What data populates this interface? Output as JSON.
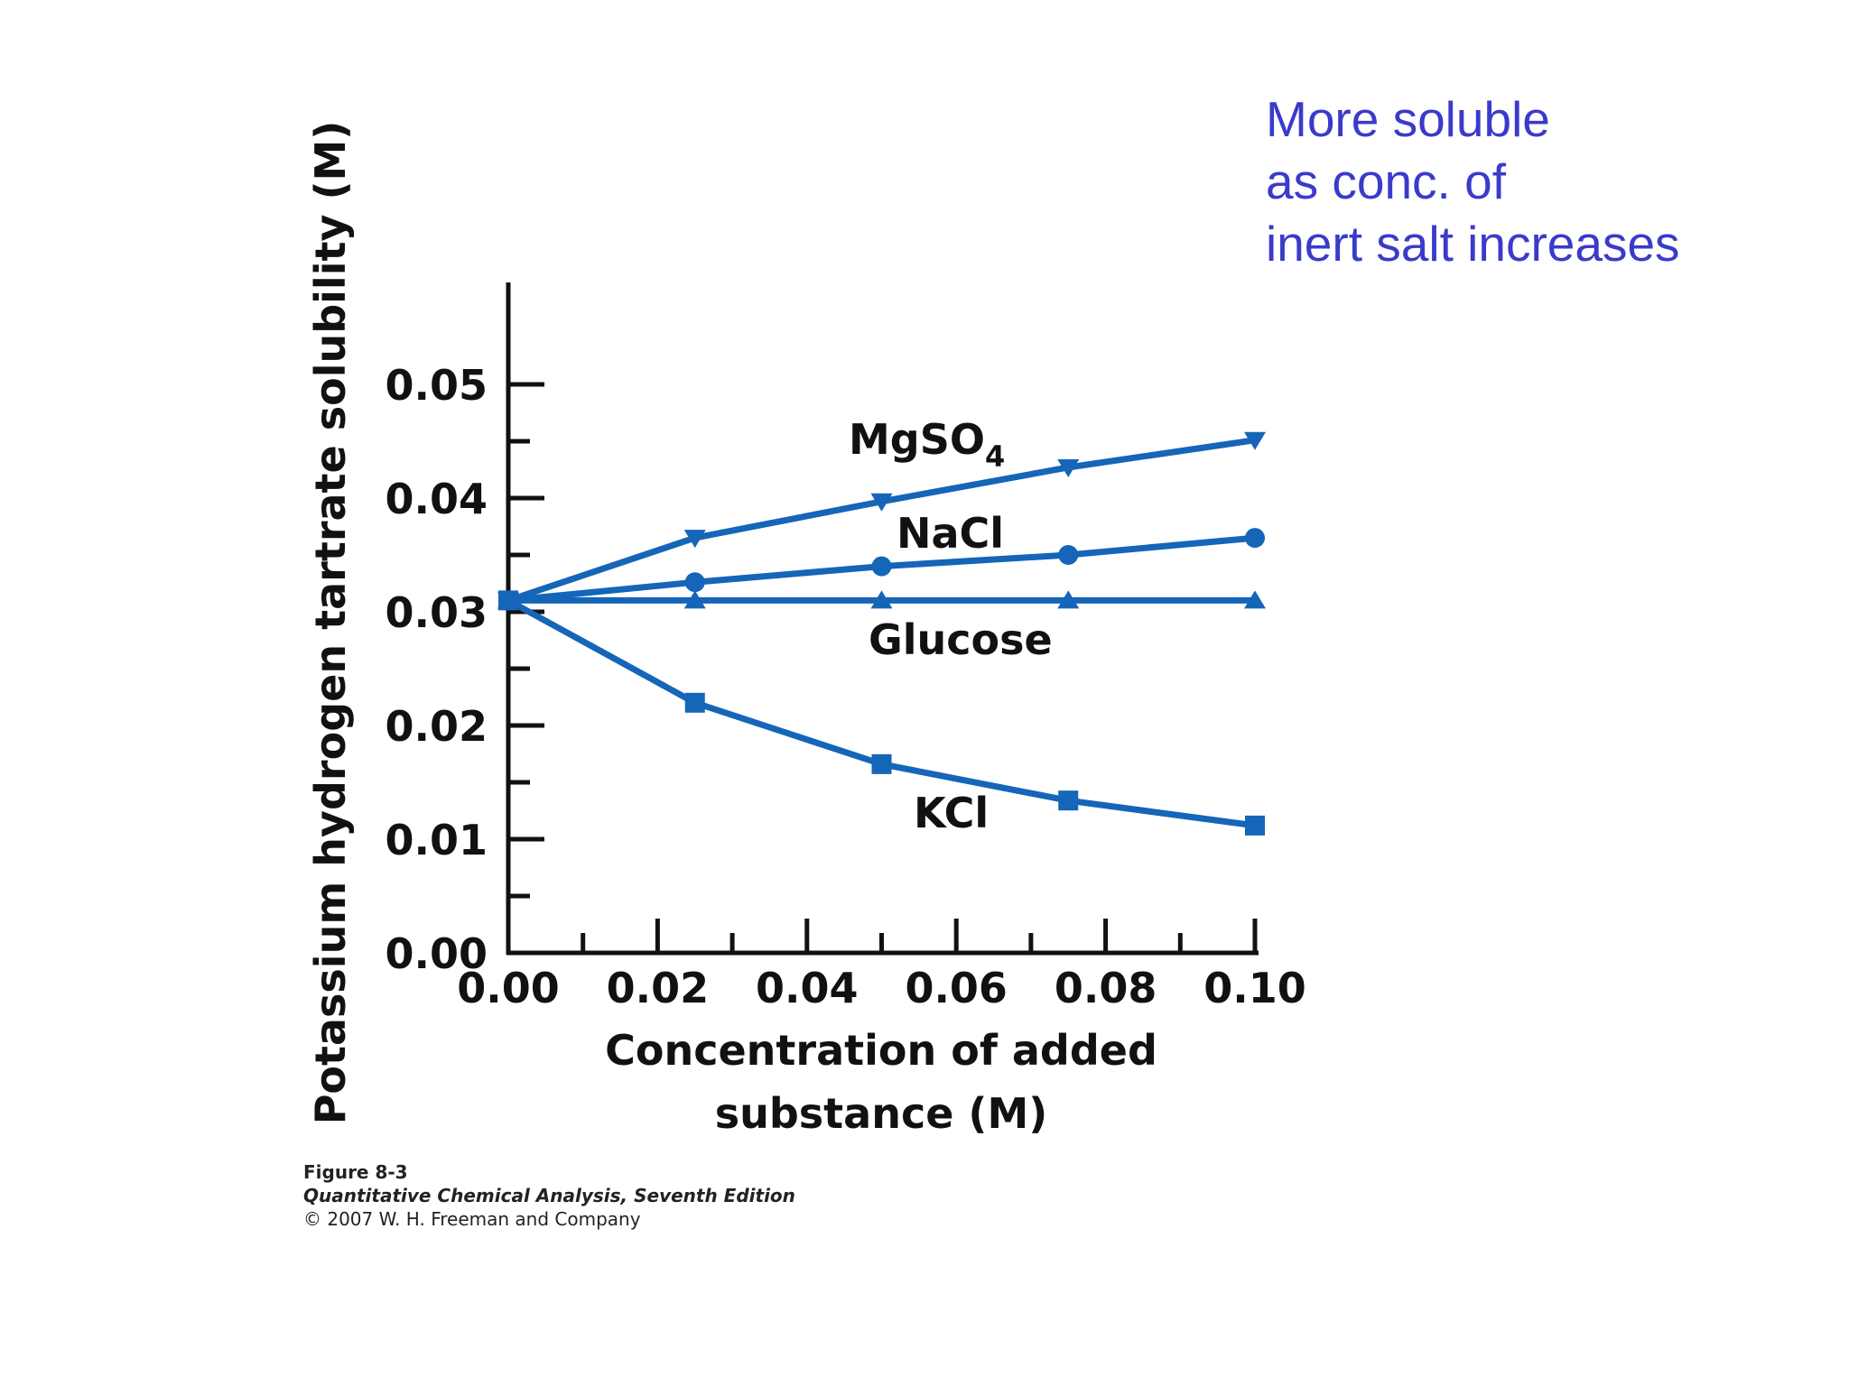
{
  "annotation": {
    "line1": "More soluble",
    "line2": "as conc. of",
    "line3": "inert salt increases"
  },
  "caption": {
    "figure": "Figure 8-3",
    "book": "Quantitative Chemical Analysis, Seventh Edition",
    "copyright": "© 2007 W. H. Freeman and Company"
  },
  "colors": {
    "series": "#1565b8",
    "axis": "#111111",
    "annotation": "#3a3acb"
  },
  "chart_data": {
    "type": "line",
    "title": "",
    "xlabel": "Concentration of added substance (M)",
    "xlabel_lines": [
      "Concentration of added",
      "substance (M)"
    ],
    "ylabel": "Potassium hydrogen tartrate solubility (M)",
    "xlim": [
      0,
      0.1
    ],
    "ylim": [
      0,
      0.055
    ],
    "x_ticks": [
      "0.00",
      "0.02",
      "0.04",
      "0.06",
      "0.08",
      "0.10"
    ],
    "y_ticks": [
      "0.00",
      "0.01",
      "0.02",
      "0.03",
      "0.04",
      "0.05"
    ],
    "grid": false,
    "legend": "none (series labeled inline)",
    "x": [
      0,
      0.025,
      0.05,
      0.075,
      0.1
    ],
    "series": [
      {
        "name": "MgSO4",
        "label_main": "MgSO",
        "label_sub": "4",
        "marker": "triangle-down",
        "values": [
          0.031,
          0.0365,
          0.0397,
          0.0427,
          0.0451
        ]
      },
      {
        "name": "NaCl",
        "label_main": "NaCl",
        "label_sub": "",
        "marker": "circle",
        "values": [
          0.031,
          0.0326,
          0.034,
          0.035,
          0.0365
        ]
      },
      {
        "name": "Glucose",
        "label_main": "Glucose",
        "label_sub": "",
        "marker": "triangle-up",
        "values": [
          0.031,
          0.031,
          0.031,
          0.031,
          0.031
        ]
      },
      {
        "name": "KCl",
        "label_main": "KCl",
        "label_sub": "",
        "marker": "square",
        "values": [
          0.031,
          0.022,
          0.0166,
          0.0134,
          0.0112
        ]
      }
    ]
  }
}
